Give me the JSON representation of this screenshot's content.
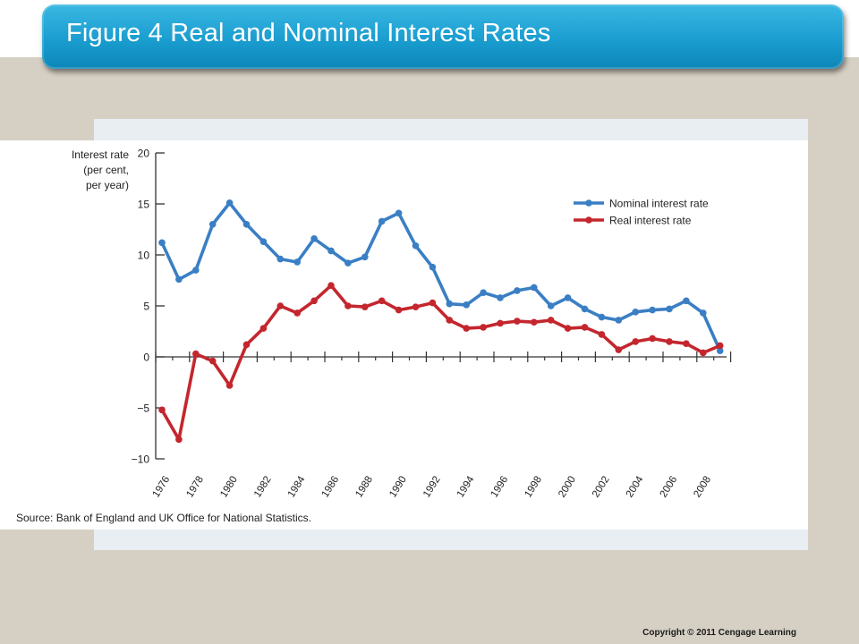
{
  "slide": {
    "title": "Figure 4 Real and Nominal Interest Rates",
    "copyright": "Copyright © 2011 Cengage Learning"
  },
  "chart_data": {
    "type": "line",
    "title": "",
    "ylabel": [
      "Interest rate",
      "(per cent,",
      "per year)"
    ],
    "xlabel": "",
    "source": "Source: Bank of England and UK Office for National Statistics.",
    "x": [
      1976,
      1977,
      1978,
      1979,
      1980,
      1981,
      1982,
      1983,
      1984,
      1985,
      1986,
      1987,
      1988,
      1989,
      1990,
      1991,
      1992,
      1993,
      1994,
      1995,
      1996,
      1997,
      1998,
      1999,
      2000,
      2001,
      2002,
      2003,
      2004,
      2005,
      2006,
      2007,
      2008,
      2009
    ],
    "x_tick_labels": [
      "1976",
      "1978",
      "1980",
      "1982",
      "1984",
      "1986",
      "1988",
      "1990",
      "1992",
      "1994",
      "1996",
      "1998",
      "2000",
      "2002",
      "2004",
      "2006",
      "2008"
    ],
    "ylim": [
      -10,
      20
    ],
    "y_ticks": [
      20,
      15,
      10,
      5,
      0,
      -5,
      -10
    ],
    "y_tick_labels": [
      "20",
      "15",
      "10",
      "5",
      "0",
      "−5",
      "−10"
    ],
    "grid": false,
    "legend_position": "top-right",
    "series": [
      {
        "name": "Nominal interest rate",
        "color": "#3a7fc4",
        "values": [
          11.2,
          7.6,
          8.5,
          13.0,
          15.1,
          13.0,
          11.3,
          9.6,
          9.3,
          11.6,
          10.4,
          9.2,
          9.8,
          13.3,
          14.1,
          10.9,
          8.8,
          5.2,
          5.1,
          6.3,
          5.8,
          6.5,
          6.8,
          5.0,
          5.8,
          4.7,
          3.9,
          3.6,
          4.4,
          4.6,
          4.7,
          5.5,
          4.3,
          0.6
        ]
      },
      {
        "name": "Real interest rate",
        "color": "#c4262e",
        "values": [
          -5.2,
          -8.1,
          0.3,
          -0.4,
          -2.8,
          1.2,
          2.8,
          5.0,
          4.3,
          5.5,
          7.0,
          5.0,
          4.9,
          5.5,
          4.6,
          4.9,
          5.3,
          3.6,
          2.8,
          2.9,
          3.3,
          3.5,
          3.4,
          3.6,
          2.8,
          2.9,
          2.2,
          0.7,
          1.5,
          1.8,
          1.5,
          1.3,
          0.4,
          1.1
        ]
      }
    ]
  }
}
